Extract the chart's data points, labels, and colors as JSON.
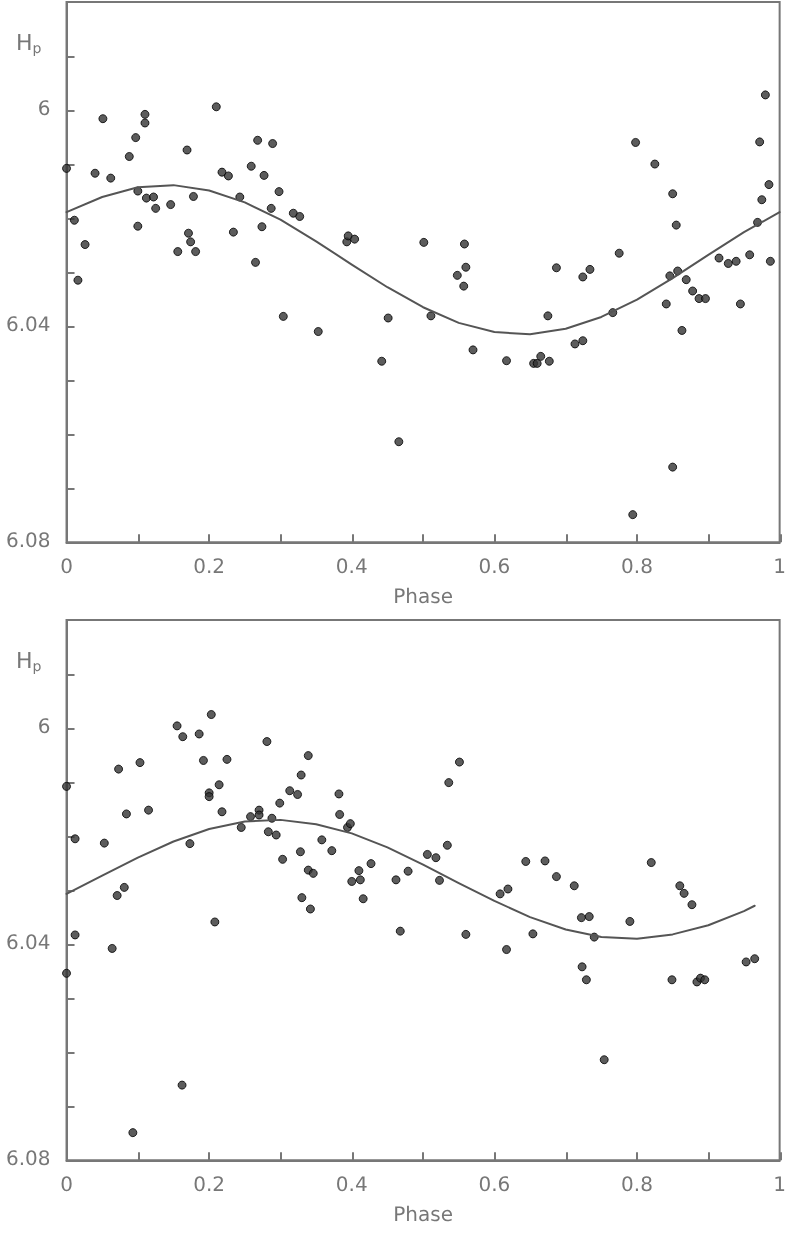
{
  "chart_data": [
    {
      "type": "scatter",
      "xlabel": "Phase",
      "ylabel": "H$_{p}$",
      "marker": "circle",
      "xlim": [
        0,
        1
      ],
      "ylim": [
        6.08,
        5.98
      ],
      "xticks": [
        0,
        {
          "value": 0.1,
          "label": null
        },
        0.2,
        {
          "value": 0.3,
          "label": null
        },
        0.4,
        {
          "value": 0.5,
          "label": null
        },
        0.6,
        {
          "value": 0.7,
          "label": null
        },
        0.8,
        {
          "value": 0.9,
          "label": null
        },
        1
      ],
      "yticks": [
        {
          "value": 5.99,
          "label": null
        },
        6,
        {
          "value": 6.01,
          "label": null
        },
        {
          "value": 6.02,
          "label": null
        },
        {
          "value": 6.03,
          "label": null
        },
        6.04,
        {
          "value": 6.05,
          "label": null
        },
        {
          "value": 6.06,
          "label": null
        },
        {
          "value": 6.07,
          "label": null
        },
        6.08
      ],
      "series": [
        {
          "color": "#333333",
          "x": [
            0,
            0.011,
            0.026,
            0.016,
            0.04,
            0.051,
            0.062,
            0.088,
            0.097,
            0.1,
            0.1,
            0.11,
            0.11,
            0.112,
            0.122,
            0.125,
            0.146,
            0.156,
            0.169,
            0.171,
            0.174,
            0.178,
            0.181,
            0.21,
            0.218,
            0.227,
            0.234,
            0.243,
            0.259,
            0.265,
            0.268,
            0.274,
            0.277,
            0.287,
            0.289,
            0.298,
            0.304,
            0.318,
            0.327,
            0.353,
            0.393,
            0.395,
            0.404,
            0.442,
            0.451,
            0.466,
            0.501,
            0.511,
            0.548,
            0.558,
            0.56,
            0.557,
            0.57,
            0.617,
            0.655,
            0.66,
            0.665,
            0.675,
            0.677,
            0.687,
            0.713,
            0.724,
            0.724,
            0.734,
            0.766,
            0.775,
            0.794,
            0.798,
            0.825,
            0.841,
            0.846,
            0.85,
            0.85,
            0.855,
            0.857,
            0.863,
            0.869,
            0.878,
            0.887,
            0.896,
            0.915,
            0.928,
            0.939,
            0.945,
            0.958,
            0.969,
            0.972,
            0.975,
            0.98,
            0.985,
            0.987
          ],
          "values": [
            6.0108,
            6.0204,
            6.0249,
            6.0315,
            6.0117,
            6.0016,
            6.0126,
            6.0086,
            6.0051,
            6.015,
            6.0215,
            6.0024,
            6.0008,
            6.0163,
            6.0161,
            6.0182,
            6.0175,
            6.0262,
            6.0074,
            6.0228,
            6.0244,
            6.016,
            6.0262,
            5.9994,
            6.0115,
            6.0122,
            6.0226,
            6.0161,
            6.0104,
            6.0282,
            6.0056,
            6.0216,
            6.0121,
            6.0182,
            6.0062,
            6.0151,
            6.0382,
            6.0191,
            6.0197,
            6.041,
            6.0244,
            6.0233,
            6.0239,
            6.0465,
            6.0385,
            6.0614,
            6.0245,
            6.0381,
            6.0306,
            6.0248,
            6.0291,
            6.0326,
            6.0444,
            6.0464,
            6.0469,
            6.0469,
            6.0456,
            6.0381,
            6.0465,
            6.0292,
            6.0433,
            6.0427,
            6.0309,
            6.0295,
            6.0375,
            6.0265,
            6.0749,
            6.006,
            6.01,
            6.0359,
            6.0307,
            6.0155,
            6.0661,
            6.0213,
            6.0298,
            6.0408,
            6.0314,
            6.0335,
            6.0349,
            6.0349,
            6.0274,
            6.0284,
            6.028,
            6.0359,
            6.0268,
            6.0208,
            6.0059,
            6.0166,
            5.9972,
            6.0138,
            6.028
          ]
        },
        {
          "type": "line",
          "color": "#555555",
          "marker": "none",
          "x": [
            0,
            0.05,
            0.1,
            0.15,
            0.2,
            0.25,
            0.3,
            0.35,
            0.4,
            0.45,
            0.5,
            0.55,
            0.6,
            0.65,
            0.7,
            0.75,
            0.8,
            0.85,
            0.9,
            0.95,
            1
          ],
          "values": [
            6.0189,
            6.0161,
            6.0143,
            6.0139,
            6.0149,
            6.0171,
            6.0203,
            6.0243,
            6.0286,
            6.0328,
            6.0365,
            6.0394,
            6.0411,
            6.0415,
            6.0405,
            6.0383,
            6.0351,
            6.0311,
            6.0268,
            6.0226,
            6.0189
          ]
        }
      ]
    },
    {
      "type": "scatter",
      "xlabel": "Phase",
      "ylabel": "H$_{p}$",
      "marker": "circle",
      "xlim": [
        0,
        1
      ],
      "ylim": [
        6.08,
        5.98
      ],
      "xticks": [
        0,
        {
          "value": 0.1,
          "label": null
        },
        0.2,
        {
          "value": 0.3,
          "label": null
        },
        0.4,
        {
          "value": 0.5,
          "label": null
        },
        0.6,
        {
          "value": 0.7,
          "label": null
        },
        0.8,
        {
          "value": 0.9,
          "label": null
        },
        1
      ],
      "yticks": [
        {
          "value": 5.99,
          "label": null
        },
        6,
        {
          "value": 6.01,
          "label": null
        },
        {
          "value": 6.02,
          "label": null
        },
        {
          "value": 6.03,
          "label": null
        },
        6.04,
        {
          "value": 6.05,
          "label": null
        },
        {
          "value": 6.06,
          "label": null
        },
        {
          "value": 6.07,
          "label": null
        },
        6.08
      ],
      "series": [
        {
          "color": "#333333",
          "x": [
            0,
            0,
            0.012,
            0.012,
            0.053,
            0.064,
            0.071,
            0.073,
            0.081,
            0.084,
            0.093,
            0.103,
            0.115,
            0.155,
            0.162,
            0.163,
            0.173,
            0.186,
            0.192,
            0.2,
            0.2,
            0.203,
            0.208,
            0.214,
            0.218,
            0.225,
            0.245,
            0.258,
            0.27,
            0.27,
            0.281,
            0.283,
            0.288,
            0.294,
            0.299,
            0.303,
            0.313,
            0.324,
            0.328,
            0.329,
            0.33,
            0.339,
            0.339,
            0.342,
            0.346,
            0.358,
            0.372,
            0.382,
            0.383,
            0.394,
            0.398,
            0.4,
            0.41,
            0.412,
            0.416,
            0.427,
            0.462,
            0.468,
            0.479,
            0.506,
            0.518,
            0.523,
            0.534,
            0.536,
            0.551,
            0.56,
            0.608,
            0.617,
            0.619,
            0.644,
            0.654,
            0.671,
            0.687,
            0.712,
            0.722,
            0.723,
            0.729,
            0.733,
            0.74,
            0.754,
            0.79,
            0.82,
            0.849,
            0.86,
            0.866,
            0.877,
            0.884,
            0.889,
            0.895,
            0.953,
            0.965
          ],
          "values": [
            6.0108,
            6.0454,
            6.0205,
            6.0383,
            6.0213,
            6.0408,
            6.031,
            6.0076,
            6.0295,
            6.0159,
            6.0749,
            6.0064,
            6.0152,
            5.9996,
            6.0661,
            6.0016,
            6.0214,
            6.0011,
            6.006,
            6.012,
            6.0127,
            5.9975,
            6.0359,
            6.0105,
            6.0155,
            6.0058,
            6.0184,
            6.0164,
            6.0152,
            6.0161,
            6.0025,
            6.0192,
            6.0167,
            6.0198,
            6.0139,
            6.0243,
            6.0116,
            6.0123,
            6.0229,
            6.0087,
            6.0314,
            6.0051,
            6.0263,
            6.0335,
            6.0269,
            6.0207,
            6.0227,
            6.0122,
            6.016,
            6.0184,
            6.0177,
            6.0284,
            6.0264,
            6.0281,
            6.0316,
            6.0251,
            6.0281,
            6.0376,
            6.0265,
            6.0234,
            6.024,
            6.0282,
            6.0217,
            6.0101,
            6.0063,
            6.0382,
            6.0307,
            6.041,
            6.0298,
            6.0247,
            6.0381,
            6.0246,
            6.0275,
            6.0292,
            6.0351,
            6.0442,
            6.0466,
            6.0349,
            6.0387,
            6.0614,
            6.0358,
            6.0249,
            6.0466,
            6.0292,
            6.0306,
            6.0327,
            6.047,
            6.0463,
            6.0466,
            6.0433,
            6.0427
          ]
        },
        {
          "type": "line",
          "color": "#555555",
          "marker": "none",
          "x": [
            0,
            0.05,
            0.1,
            0.15,
            0.2,
            0.25,
            0.3,
            0.35,
            0.4,
            0.45,
            0.5,
            0.55,
            0.6,
            0.65,
            0.7,
            0.75,
            0.8,
            0.85,
            0.9,
            0.95,
            0.965
          ],
          "values": [
            6.0307,
            6.0273,
            6.024,
            6.021,
            6.0187,
            6.0173,
            6.017,
            6.0178,
            6.0195,
            6.0221,
            6.0253,
            6.0287,
            6.032,
            6.035,
            6.0373,
            6.0387,
            6.039,
            6.0382,
            6.0365,
            6.0339,
            6.0329
          ]
        }
      ]
    }
  ]
}
